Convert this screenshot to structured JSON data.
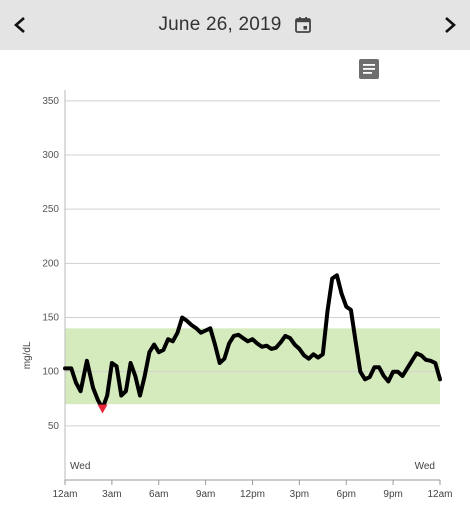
{
  "header": {
    "date_title": "June 26, 2019",
    "prev_icon": "chevron-left-icon",
    "next_icon": "chevron-right-icon",
    "calendar_icon": "calendar-icon"
  },
  "notes_icon": "notes-icon",
  "colors": {
    "header_bg": "#e4e4e4",
    "target_range": "#d6ebbd",
    "line": "#000000",
    "low_marker": "#e8283a",
    "grid": "#d0d0d0"
  },
  "chart_data": {
    "type": "line",
    "xlabel": "",
    "ylabel": "mg/dL",
    "ylim": [
      0,
      360
    ],
    "yticks": [
      50,
      100,
      150,
      200,
      250,
      300,
      350
    ],
    "xlim": [
      0,
      24
    ],
    "xticks": [
      {
        "x": 0,
        "label": "12am"
      },
      {
        "x": 3,
        "label": "3am"
      },
      {
        "x": 6,
        "label": "6am"
      },
      {
        "x": 9,
        "label": "9am"
      },
      {
        "x": 12,
        "label": "12pm"
      },
      {
        "x": 15,
        "label": "3pm"
      },
      {
        "x": 18,
        "label": "6pm"
      },
      {
        "x": 21,
        "label": "9pm"
      },
      {
        "x": 24,
        "label": "12am"
      }
    ],
    "day_labels": {
      "start": "Wed",
      "end": "Wed"
    },
    "target_range": [
      70,
      140
    ],
    "low_marker": {
      "x": 2.4,
      "y": 66
    },
    "series": [
      {
        "x": [
          0,
          0.4,
          0.7,
          1.0,
          1.4,
          1.8,
          2.1,
          2.4,
          2.7,
          3.0,
          3.3,
          3.6,
          3.9,
          4.2,
          4.5,
          4.8,
          5.1,
          5.4,
          5.7,
          6.0,
          6.3,
          6.6,
          6.9,
          7.2,
          7.5,
          7.8,
          8.1,
          8.4,
          8.7,
          9.0,
          9.3,
          9.6,
          9.9,
          10.2,
          10.5,
          10.8,
          11.1,
          11.4,
          11.7,
          12.0,
          12.3,
          12.6,
          12.9,
          13.2,
          13.5,
          13.8,
          14.1,
          14.4,
          14.7,
          15.0,
          15.3,
          15.6,
          15.9,
          16.2,
          16.5,
          16.8,
          17.1,
          17.4,
          17.7,
          18.0,
          18.3,
          18.6,
          18.9,
          19.2,
          19.5,
          19.8,
          20.1,
          20.4,
          20.7,
          21.0,
          21.3,
          21.6,
          21.9,
          22.2,
          22.5,
          22.8,
          23.1,
          23.4,
          23.7,
          24.0
        ],
        "y": [
          103,
          103,
          90,
          82,
          110,
          85,
          74,
          66,
          78,
          108,
          105,
          78,
          82,
          108,
          96,
          78,
          96,
          118,
          125,
          118,
          120,
          130,
          128,
          136,
          150,
          147,
          143,
          140,
          136,
          138,
          140,
          125,
          108,
          112,
          126,
          133,
          134,
          131,
          128,
          130,
          126,
          123,
          124,
          121,
          122,
          127,
          133,
          131,
          125,
          121,
          115,
          112,
          116,
          113,
          116,
          156,
          186,
          189,
          172,
          160,
          157,
          128,
          100,
          93,
          95,
          104,
          104,
          96,
          91,
          100,
          100,
          96,
          103,
          110,
          117,
          115,
          111,
          110,
          108,
          93
        ]
      }
    ]
  }
}
